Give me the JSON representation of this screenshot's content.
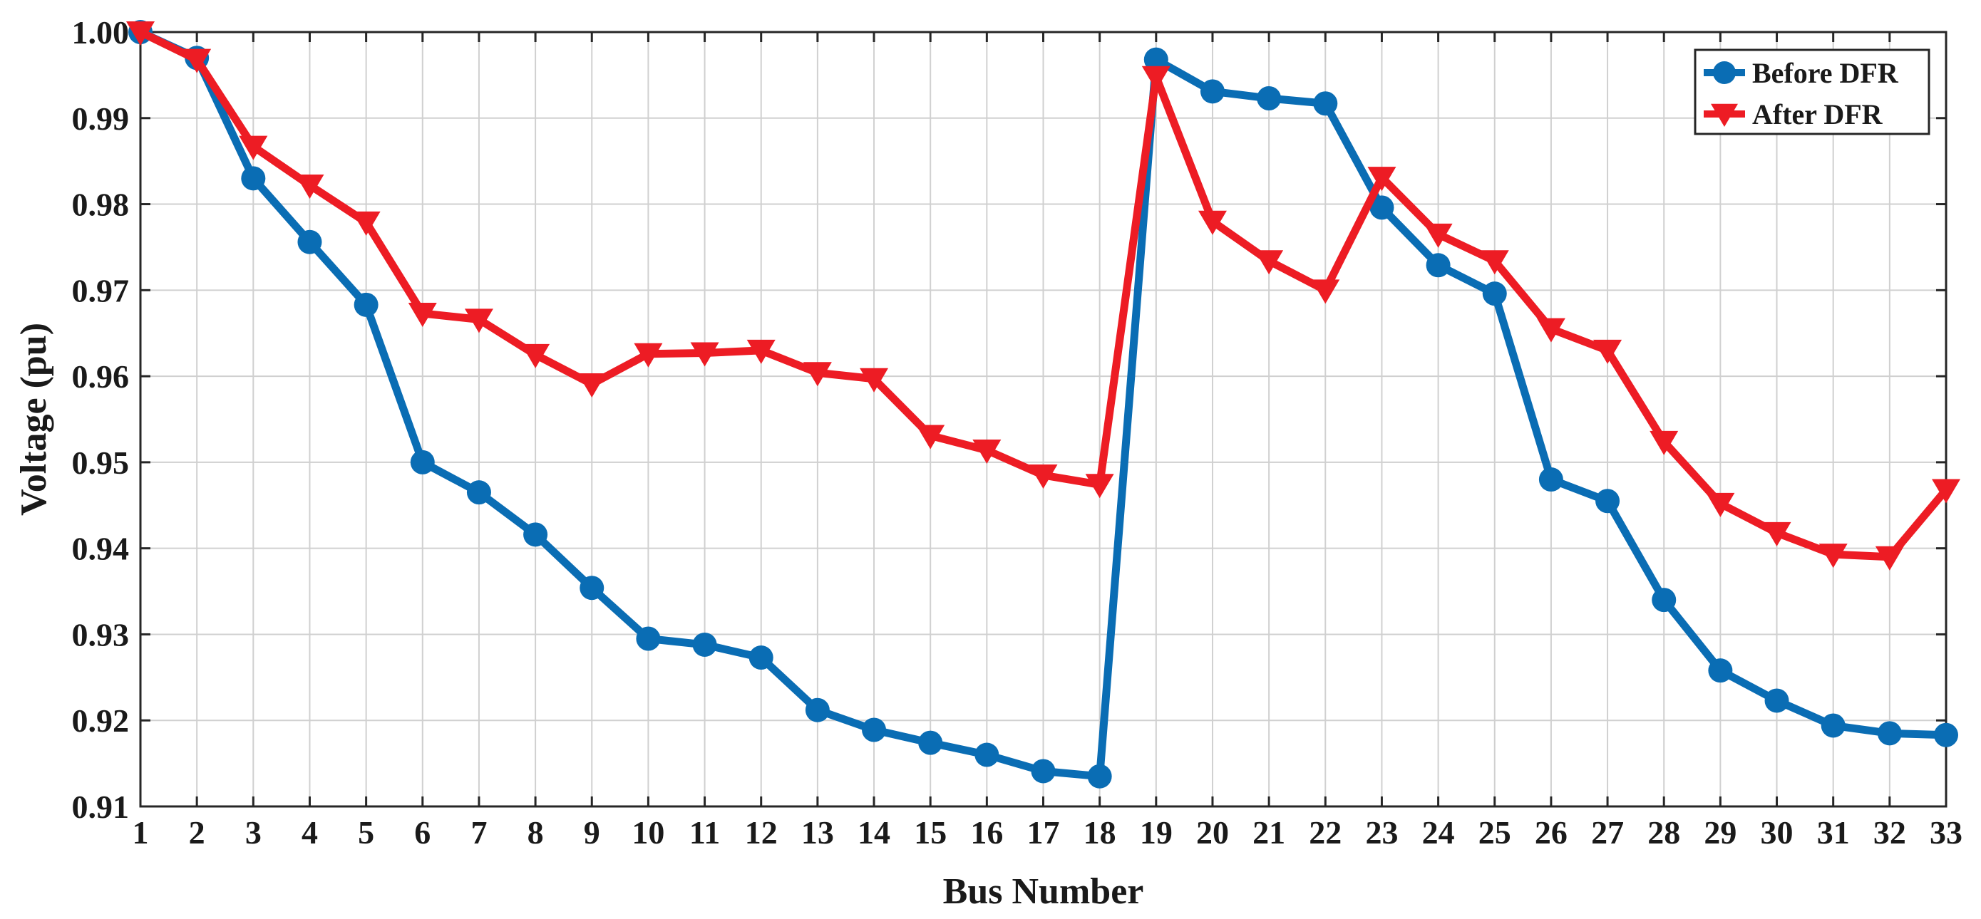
{
  "chart_data": {
    "type": "line",
    "title": "",
    "xlabel": "Bus Number",
    "ylabel": "Voltage (pu)",
    "xlim": [
      1,
      33
    ],
    "ylim": [
      0.91,
      1.0
    ],
    "yticks": [
      "0.91",
      "0.92",
      "0.93",
      "0.94",
      "0.95",
      "0.96",
      "0.97",
      "0.98",
      "0.99",
      "1.00"
    ],
    "ytick_values": [
      0.91,
      0.92,
      0.93,
      0.94,
      0.95,
      0.96,
      0.97,
      0.98,
      0.99,
      1.0
    ],
    "x": [
      1,
      2,
      3,
      4,
      5,
      6,
      7,
      8,
      9,
      10,
      11,
      12,
      13,
      14,
      15,
      16,
      17,
      18,
      19,
      20,
      21,
      22,
      23,
      24,
      25,
      26,
      27,
      28,
      29,
      30,
      31,
      32,
      33
    ],
    "grid": true,
    "legend_position": "top-right",
    "series": [
      {
        "name": "Before DFR",
        "color": "#0a6db4",
        "marker": "circle",
        "values": [
          1.0,
          0.997,
          0.983,
          0.9756,
          0.9683,
          0.95,
          0.9465,
          0.9416,
          0.9354,
          0.9295,
          0.9288,
          0.9273,
          0.9212,
          0.9189,
          0.9174,
          0.916,
          0.9141,
          0.9135,
          0.9968,
          0.9931,
          0.9923,
          0.9917,
          0.9796,
          0.9729,
          0.9696,
          0.948,
          0.9455,
          0.934,
          0.9258,
          0.9223,
          0.9194,
          0.9185,
          0.9183
        ]
      },
      {
        "name": "After DFR",
        "color": "#ed1c24",
        "marker": "triangle-down",
        "values": [
          1.0,
          0.9968,
          0.9867,
          0.9822,
          0.9779,
          0.9673,
          0.9666,
          0.9625,
          0.9591,
          0.9626,
          0.9627,
          0.963,
          0.9604,
          0.9597,
          0.9531,
          0.9514,
          0.9485,
          0.9474,
          0.9948,
          0.978,
          0.9734,
          0.97,
          0.9831,
          0.9765,
          0.9734,
          0.9655,
          0.963,
          0.9524,
          0.9452,
          0.9418,
          0.9393,
          0.939,
          0.9468
        ]
      }
    ]
  }
}
